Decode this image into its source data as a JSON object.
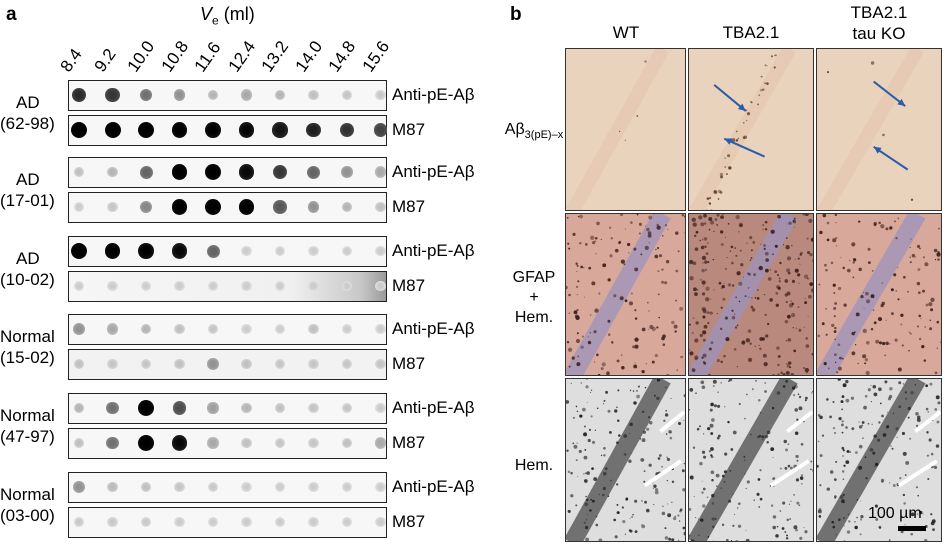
{
  "panel_a": {
    "letter": "a",
    "ve_var": "V",
    "ve_sub": "e",
    "ve_unit": "(ml)",
    "fractions": [
      "8.4",
      "9.2",
      "10.0",
      "10.8",
      "11.6",
      "12.4",
      "13.2",
      "14.0",
      "14.8",
      "15.6"
    ],
    "samples": [
      {
        "line1": "AD",
        "line2": "(62-98)"
      },
      {
        "line1": "AD",
        "line2": "(17-01)"
      },
      {
        "line1": "AD",
        "line2": "(10-02)"
      },
      {
        "line1": "Normal",
        "line2": "(15-02)"
      },
      {
        "line1": "Normal",
        "line2": "(47-97)"
      },
      {
        "line1": "Normal",
        "line2": "(03-00)"
      }
    ],
    "antibody_top": "Anti-pE-Aβ",
    "antibody_bottom": "M87",
    "dot_intensities": [
      [
        [
          0.75,
          0.7,
          0.45,
          0.3,
          0.15,
          0.2,
          0.15,
          0.1,
          0.08,
          0.06
        ],
        [
          1,
          1,
          1,
          0.98,
          0.95,
          0.92,
          0.85,
          0.8,
          0.72,
          0.65
        ]
      ],
      [
        [
          0.1,
          0.15,
          0.5,
          0.98,
          0.98,
          0.9,
          0.7,
          0.5,
          0.3,
          0.2
        ],
        [
          0.05,
          0.08,
          0.35,
          0.98,
          0.98,
          0.98,
          0.55,
          0.3,
          0.15,
          0.1
        ]
      ],
      [
        [
          1,
          0.98,
          0.95,
          0.9,
          0.5,
          0.05,
          0.05,
          0.05,
          0.05,
          0.05
        ],
        [
          0.05,
          0.05,
          0.05,
          0.05,
          0.05,
          0.05,
          0.05,
          0.05,
          0.05,
          0.05
        ]
      ],
      [
        [
          0.3,
          0.2,
          0.15,
          0.1,
          0.08,
          0.05,
          0.05,
          0.1,
          0.05,
          0.05
        ],
        [
          0.1,
          0.08,
          0.08,
          0.1,
          0.3,
          0.1,
          0.08,
          0.08,
          0.08,
          0.08
        ]
      ],
      [
        [
          0.15,
          0.45,
          0.98,
          0.6,
          0.25,
          0.15,
          0.1,
          0.08,
          0.08,
          0.05
        ],
        [
          0.1,
          0.45,
          0.98,
          0.9,
          0.2,
          0.1,
          0.08,
          0.08,
          0.1,
          0.2
        ]
      ],
      [
        [
          0.3,
          0.12,
          0.1,
          0.08,
          0.06,
          0.05,
          0.05,
          0.05,
          0.05,
          0.05
        ],
        [
          0.06,
          0.06,
          0.06,
          0.05,
          0.05,
          0.05,
          0.05,
          0.05,
          0.05,
          0.05
        ]
      ]
    ]
  },
  "panel_b": {
    "letter": "b",
    "columns": [
      {
        "line1": "WT",
        "line2": ""
      },
      {
        "line1": "TBA2.1",
        "line2": ""
      },
      {
        "line1": "TBA2.1",
        "line2": "tau KO"
      }
    ],
    "rows": [
      {
        "line1": "Aβ",
        "sub": "3(pE)–x",
        "line2": "",
        "line3": ""
      },
      {
        "line1": "GFAP",
        "sub": "",
        "line2": "+",
        "line3": "Hem."
      },
      {
        "line1": "Hem.",
        "sub": "",
        "line2": "",
        "line3": ""
      }
    ],
    "scale_bar": "100 µm",
    "colors": {
      "ab_bg": "#ead3bd",
      "gfap_bg": "#d8a99b",
      "gfap_layer": "#9c93bd",
      "hem_bg": "#dedede",
      "arrow": "#2a5ca8"
    }
  }
}
